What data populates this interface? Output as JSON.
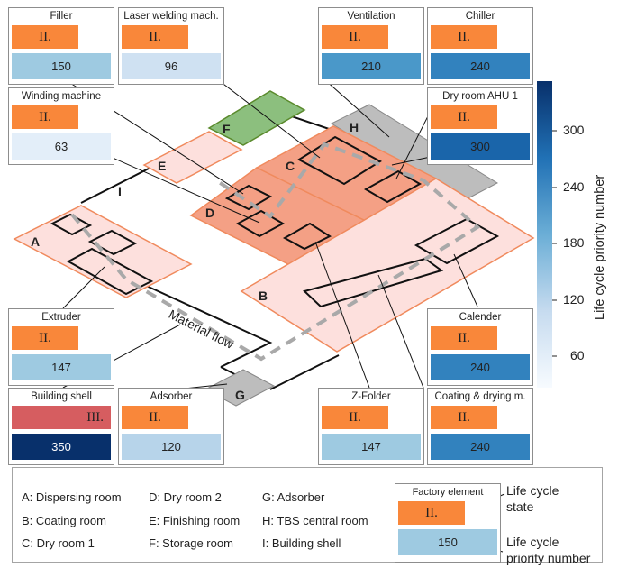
{
  "cards": [
    {
      "id": "filler",
      "title": "Filler",
      "state": "II.",
      "priority": "150",
      "fill": "#9ecae1"
    },
    {
      "id": "laser",
      "title": "Laser welding mach.",
      "state": "II.",
      "priority": "96",
      "fill": "#cfe1f2"
    },
    {
      "id": "ventilation",
      "title": "Ventilation",
      "state": "II.",
      "priority": "210",
      "fill": "#4a98c9"
    },
    {
      "id": "chiller",
      "title": "Chiller",
      "state": "II.",
      "priority": "240",
      "fill": "#3282be"
    },
    {
      "id": "winding",
      "title": "Winding machine",
      "state": "II.",
      "priority": "63",
      "fill": "#e3eef9"
    },
    {
      "id": "dryroom-ahu",
      "title": "Dry room AHU 1",
      "state": "II.",
      "priority": "300",
      "fill": "#1a65aa"
    },
    {
      "id": "extruder",
      "title": "Extruder",
      "state": "II.",
      "priority": "147",
      "fill": "#9ecae1"
    },
    {
      "id": "calender",
      "title": "Calender",
      "state": "II.",
      "priority": "240",
      "fill": "#3282be"
    },
    {
      "id": "building-shell",
      "title": "Building shell",
      "state": "III.",
      "priority": "350",
      "fill": "#08306b"
    },
    {
      "id": "adsorber",
      "title": "Adsorber",
      "state": "II.",
      "priority": "120",
      "fill": "#b7d4ea"
    },
    {
      "id": "z-folder",
      "title": "Z-Folder",
      "state": "II.",
      "priority": "147",
      "fill": "#9ecae1"
    },
    {
      "id": "coating-drying",
      "title": "Coating & drying m.",
      "state": "II.",
      "priority": "240",
      "fill": "#3282be"
    }
  ],
  "room_labels": {
    "A": "A",
    "B": "B",
    "C": "C",
    "D": "D",
    "E": "E",
    "F": "F",
    "G": "G",
    "H": "H",
    "I": "I"
  },
  "flow_label": "Material flow",
  "colorbar": {
    "label": "Life cycle priority number",
    "ticks": [
      "300",
      "240",
      "180",
      "120",
      "60"
    ],
    "range": [
      30,
      350
    ],
    "colors": [
      "#f7fbff",
      "#c6dbef",
      "#6baed6",
      "#2171b5",
      "#08306b"
    ]
  },
  "legend": {
    "rooms": [
      "A: Dispersing room",
      "B: Coating room",
      "C: Dry room 1",
      "D: Dry room 2",
      "E: Finishing room",
      "F: Storage room",
      "G: Adsorber",
      "H: TBS central room",
      "I: Building shell"
    ],
    "example": {
      "title": "Factory element",
      "state": "II.",
      "priority": "150",
      "fill": "#9ecae1"
    },
    "state_note": "Life cycle\nstate",
    "priority_note": "Life cycle\npriority number"
  },
  "colors": {
    "state_ii": "#f9873a",
    "state_iii": "#d65d60",
    "room_light": "#fde0dd",
    "room_dark": "#f4a085",
    "storage": "#8cbf7e",
    "grey_room": "#bdbdbd"
  }
}
